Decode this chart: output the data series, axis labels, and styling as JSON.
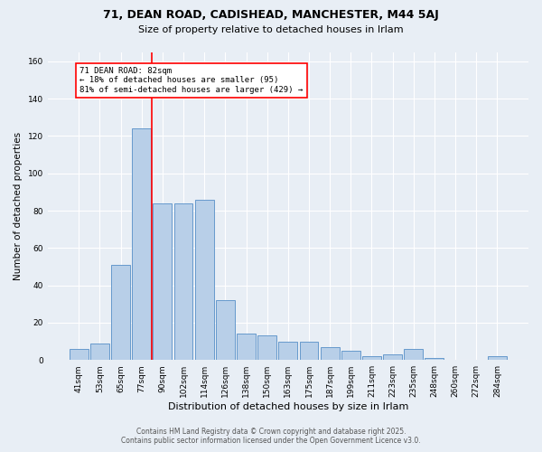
{
  "title1": "71, DEAN ROAD, CADISHEAD, MANCHESTER, M44 5AJ",
  "title2": "Size of property relative to detached houses in Irlam",
  "xlabel": "Distribution of detached houses by size in Irlam",
  "ylabel": "Number of detached properties",
  "categories": [
    "41sqm",
    "53sqm",
    "65sqm",
    "77sqm",
    "90sqm",
    "102sqm",
    "114sqm",
    "126sqm",
    "138sqm",
    "150sqm",
    "163sqm",
    "175sqm",
    "187sqm",
    "199sqm",
    "211sqm",
    "223sqm",
    "235sqm",
    "248sqm",
    "260sqm",
    "272sqm",
    "284sqm"
  ],
  "values": [
    6,
    9,
    51,
    124,
    84,
    84,
    86,
    32,
    14,
    13,
    10,
    10,
    7,
    5,
    2,
    3,
    6,
    1,
    0,
    0,
    2
  ],
  "bar_color": "#b8cfe8",
  "bar_edge_color": "#6699cc",
  "annotation_line1": "71 DEAN ROAD: 82sqm",
  "annotation_line2": "← 18% of detached houses are smaller (95)",
  "annotation_line3": "81% of semi-detached houses are larger (429) →",
  "ylim": [
    0,
    165
  ],
  "yticks": [
    0,
    20,
    40,
    60,
    80,
    100,
    120,
    140,
    160
  ],
  "footer1": "Contains HM Land Registry data © Crown copyright and database right 2025.",
  "footer2": "Contains public sector information licensed under the Open Government Licence v3.0.",
  "bg_color": "#e8eef5",
  "plot_bg_color": "#e8eef5"
}
